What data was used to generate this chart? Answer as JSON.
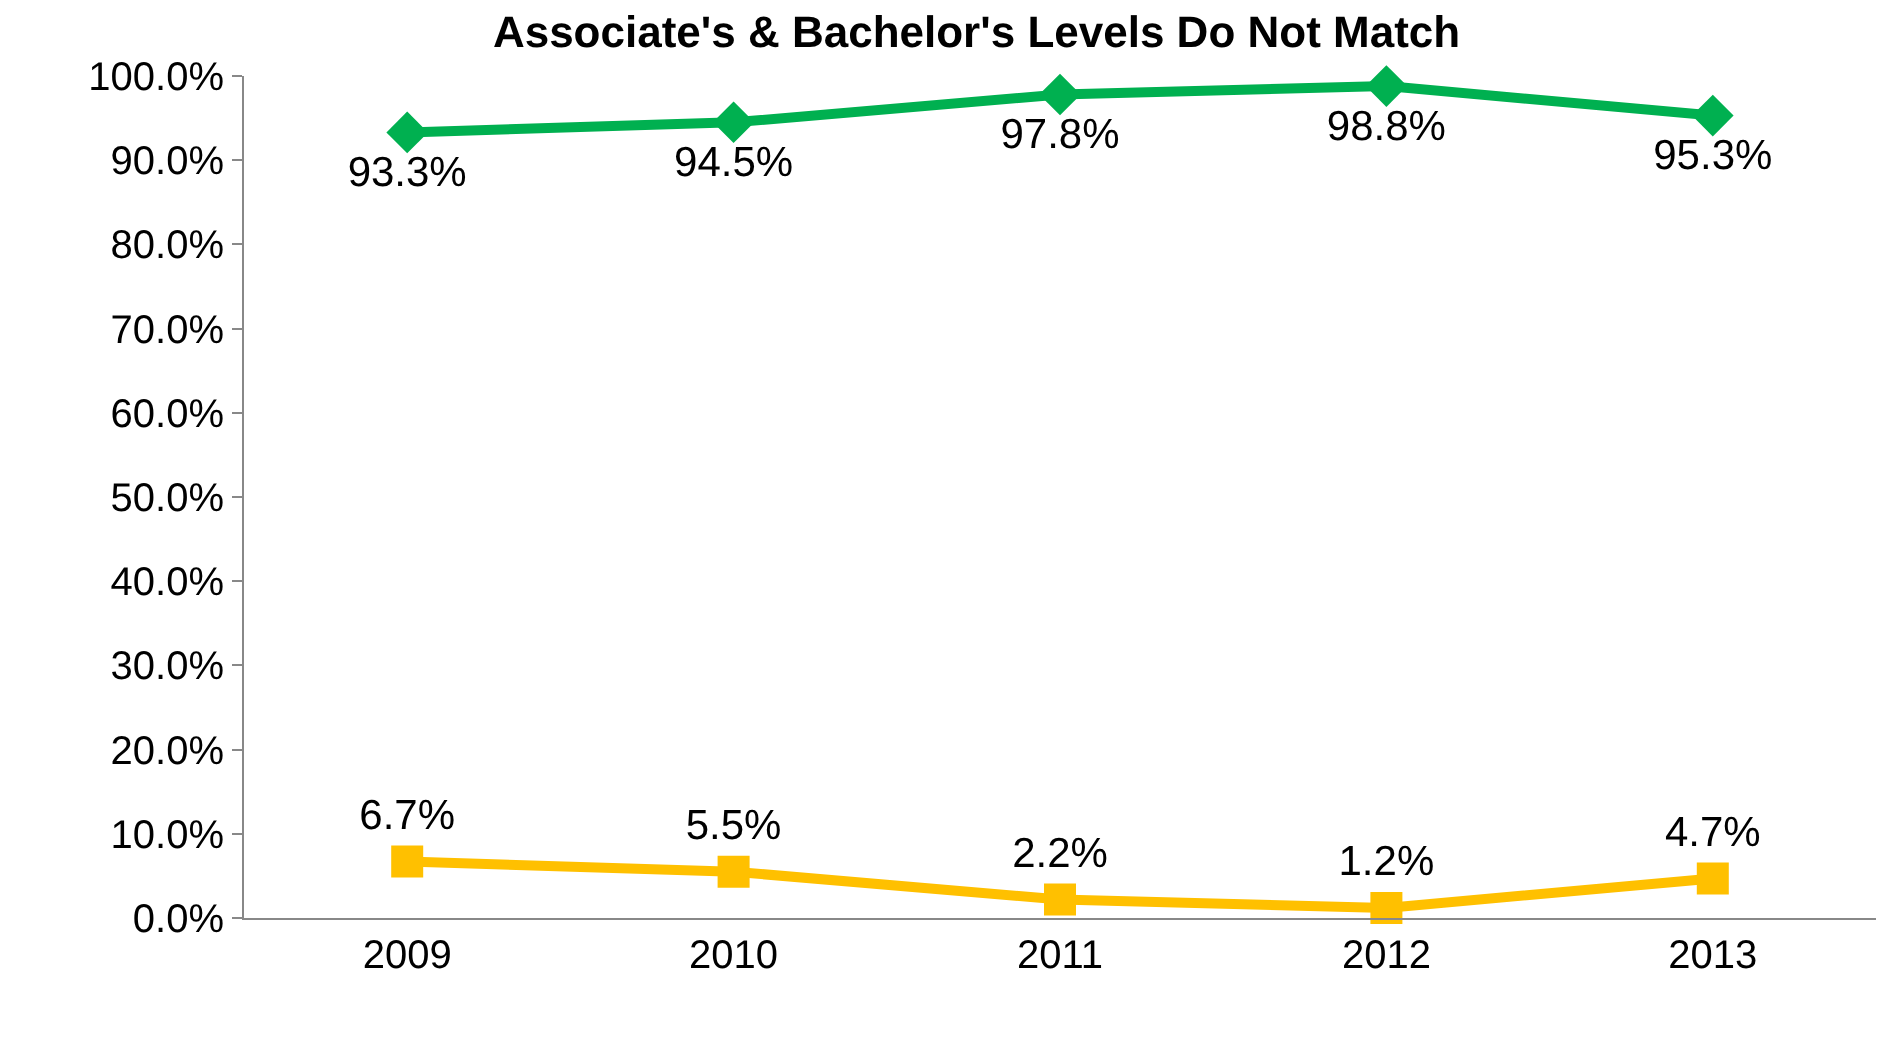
{
  "chart_data": {
    "type": "line",
    "title": "Associate's & Bachelor's Levels Do Not Match",
    "categories": [
      "2009",
      "2010",
      "2011",
      "2012",
      "2013"
    ],
    "series": [
      {
        "color": "#00b050",
        "values": [
          93.3,
          94.5,
          97.8,
          98.8,
          95.3
        ],
        "marker": "diamond",
        "value_labels": [
          "93.3%",
          "94.5%",
          "97.8%",
          "98.8%",
          "95.3%"
        ]
      },
      {
        "color": "#ffc000",
        "values": [
          6.7,
          5.5,
          2.2,
          1.2,
          4.7
        ],
        "marker": "square",
        "value_labels": [
          "6.7%",
          "5.5%",
          "2.2%",
          "1.2%",
          "4.7%"
        ]
      }
    ],
    "ylim": [
      0,
      100
    ],
    "yticks": [
      {
        "value": 0,
        "label": "0.0%"
      },
      {
        "value": 10,
        "label": "10.0%"
      },
      {
        "value": 20,
        "label": "20.0%"
      },
      {
        "value": 30,
        "label": "30.0%"
      },
      {
        "value": 40,
        "label": "40.0%"
      },
      {
        "value": 50,
        "label": "50.0%"
      },
      {
        "value": 60,
        "label": "60.0%"
      },
      {
        "value": 70,
        "label": "70.0%"
      },
      {
        "value": 80,
        "label": "80.0%"
      },
      {
        "value": 90,
        "label": "90.0%"
      },
      {
        "value": 100,
        "label": "100.0%"
      }
    ],
    "line_style": "solid"
  }
}
